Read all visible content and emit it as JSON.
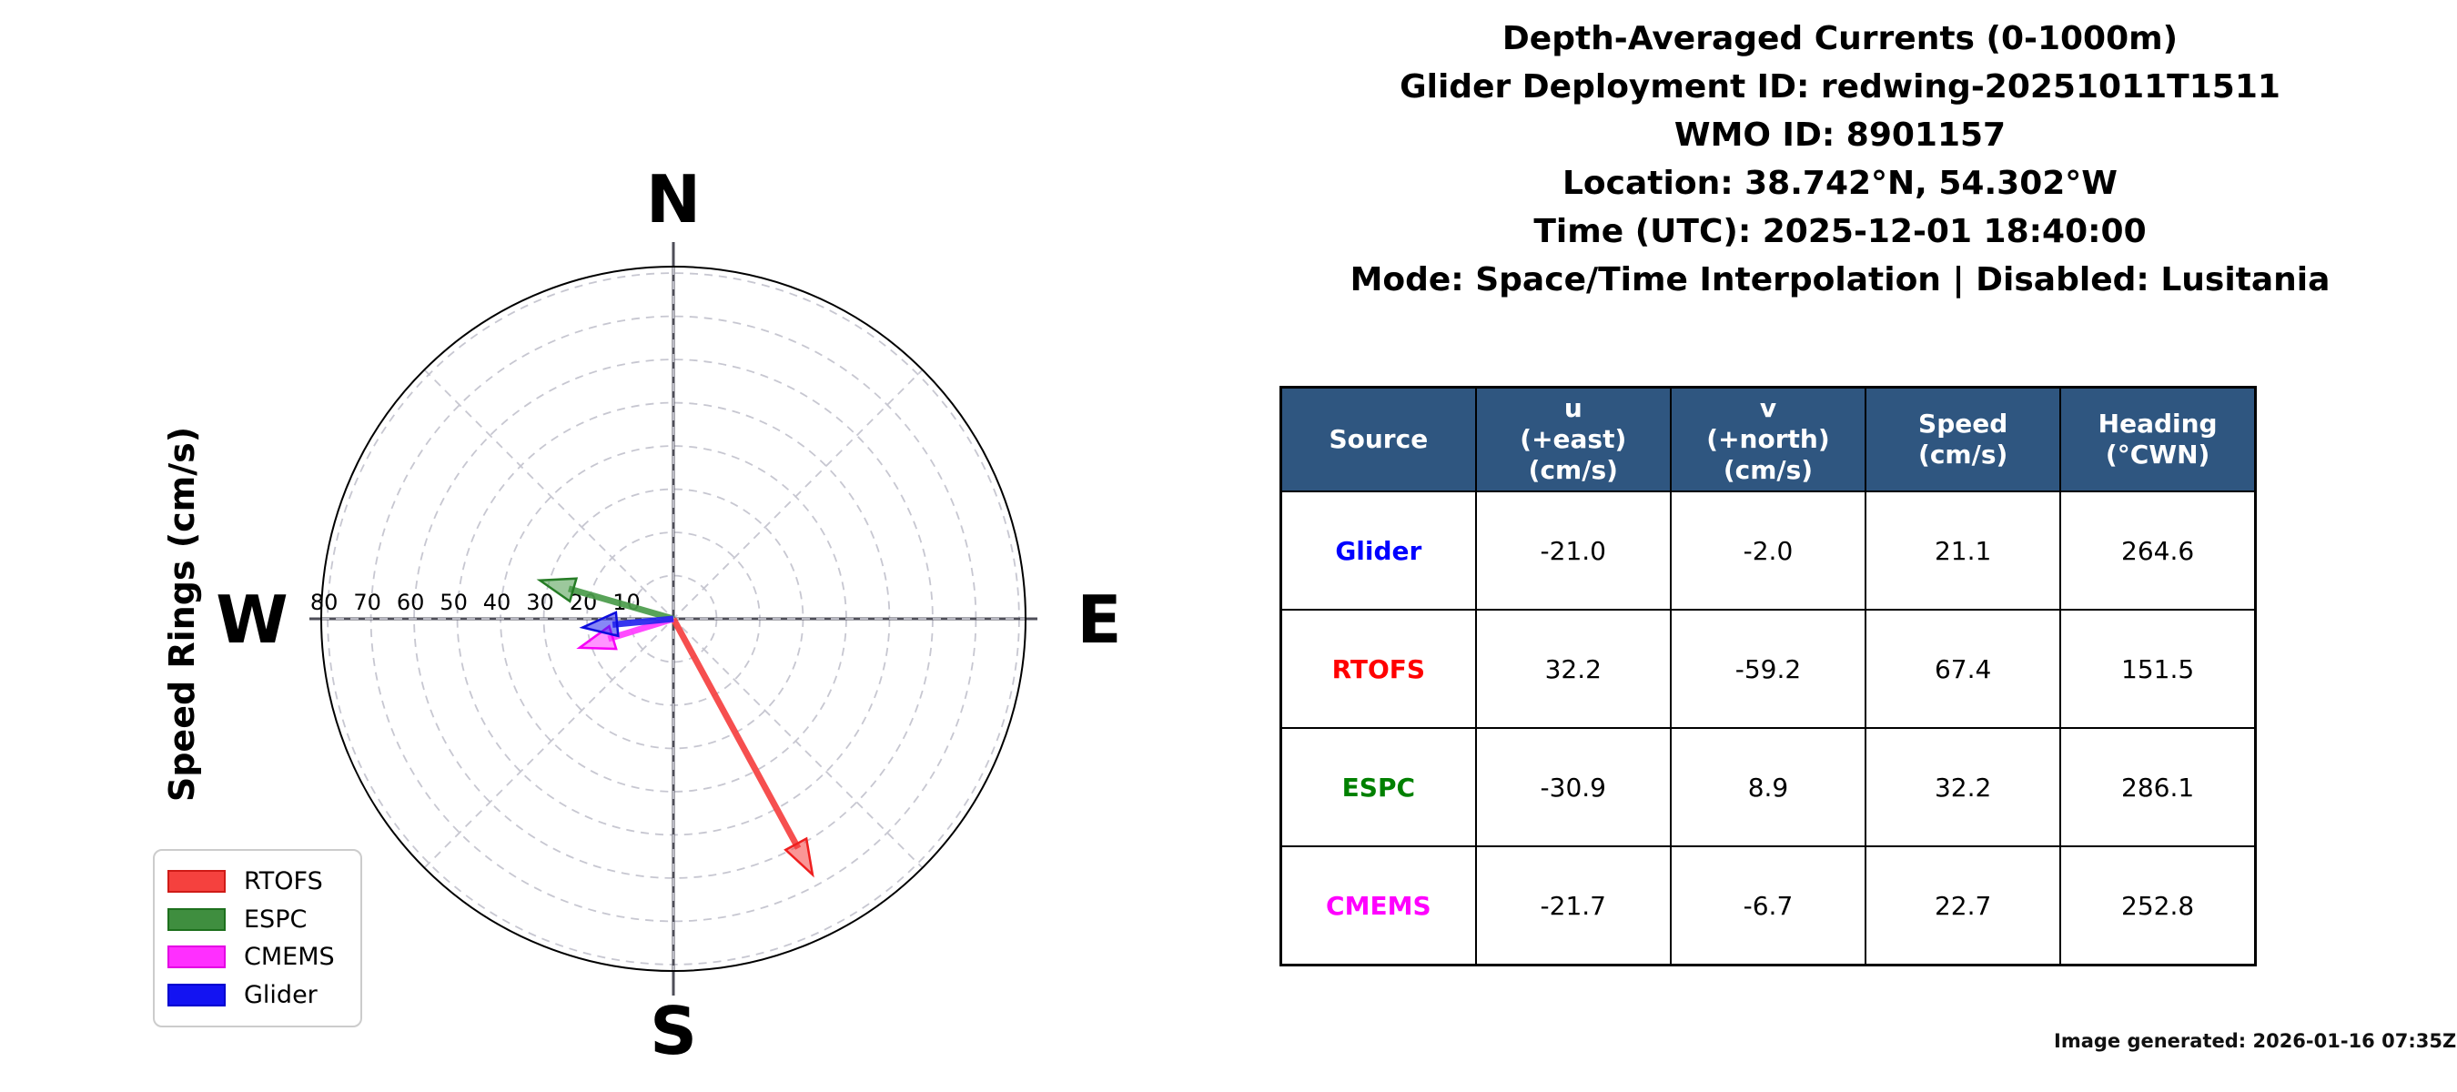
{
  "title_block": {
    "lines": [
      "Depth-Averaged Currents (0-1000m)",
      "Glider Deployment ID: redwing-20251011T1511",
      "WMO ID: 8901157",
      "Location: 38.742°N, 54.302°W",
      "Time (UTC): 2025-12-01 18:40:00",
      "Mode: Space/Time Interpolation | Disabled: Lusitania"
    ]
  },
  "ylabel": "Speed Rings (cm/s)",
  "compass": {
    "north": "N",
    "east": "E",
    "south": "S",
    "west": "W"
  },
  "chart_data": {
    "type": "quiver_polar",
    "title": "Depth-Averaged Currents (0-1000m)",
    "radial_axis_label": "Speed Rings (cm/s)",
    "ring_values": [
      10,
      20,
      30,
      40,
      50,
      60,
      70,
      80
    ],
    "ring_unit": "cm/s",
    "rmax": 81.5,
    "grid": "dashed",
    "vectors": [
      {
        "name": "RTOFS",
        "u": 32.2,
        "v": -59.2,
        "color": "#f54040",
        "edge": "#ef1f1f"
      },
      {
        "name": "ESPC",
        "u": -30.9,
        "v": 8.9,
        "color": "#4a9b4a",
        "edge": "#257c25"
      },
      {
        "name": "CMEMS",
        "u": -21.7,
        "v": -6.7,
        "color": "#ff3cff",
        "edge": "#f700f7"
      },
      {
        "name": "Glider",
        "u": -21.0,
        "v": -2.0,
        "color": "#2424ee",
        "edge": "#0d0ddd"
      }
    ]
  },
  "legend": {
    "items": [
      {
        "label": "RTOFS",
        "fill": "#f5413e",
        "edge": "#cf1b17"
      },
      {
        "label": "ESPC",
        "fill": "#3f8e3f",
        "edge": "#1d701d"
      },
      {
        "label": "CMEMS",
        "fill": "#ff2fff",
        "edge": "#e400e4"
      },
      {
        "label": "Glider",
        "fill": "#1313f2",
        "edge": "#0000cf"
      }
    ]
  },
  "table": {
    "header_bg": "#2f5680",
    "headers": [
      [
        "Source"
      ],
      [
        "u",
        "(+east)",
        "(cm/s)"
      ],
      [
        "v",
        "(+north)",
        "(cm/s)"
      ],
      [
        "Speed",
        "(cm/s)"
      ],
      [
        "Heading",
        "(°CWN)"
      ]
    ],
    "rows": [
      {
        "source": "Glider",
        "color": "#0000ff",
        "u": "-21.0",
        "v": "-2.0",
        "speed": "21.1",
        "heading": "264.6"
      },
      {
        "source": "RTOFS",
        "color": "#ff0000",
        "u": "32.2",
        "v": "-59.2",
        "speed": "67.4",
        "heading": "151.5"
      },
      {
        "source": "ESPC",
        "color": "#008000",
        "u": "-30.9",
        "v": "8.9",
        "speed": "32.2",
        "heading": "286.1"
      },
      {
        "source": "CMEMS",
        "color": "#ff00ff",
        "u": "-21.7",
        "v": "-6.7",
        "speed": "22.7",
        "heading": "252.8"
      }
    ]
  },
  "footer": {
    "generated": "Image generated: 2026-01-16 07:35Z"
  }
}
